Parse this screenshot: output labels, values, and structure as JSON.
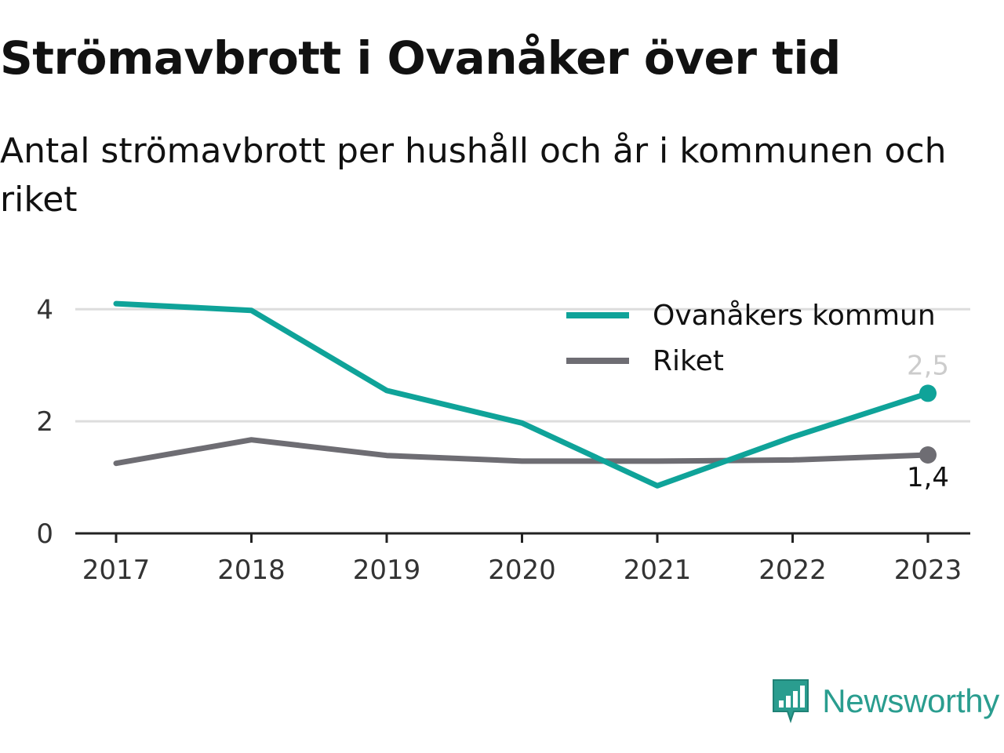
{
  "title": "Strömavbrott i Ovanåker över tid",
  "subtitle": "Antal strömavbrott per hushåll och år i kommunen och riket",
  "brand": {
    "name": "Newsworthy",
    "icon": "newsworthy-logo-icon",
    "color": "#2a9d8f"
  },
  "chart_data": {
    "type": "line",
    "title": "",
    "xlabel": "",
    "ylabel": "",
    "x": [
      "2017",
      "2018",
      "2019",
      "2020",
      "2021",
      "2022",
      "2023"
    ],
    "ylim": [
      0,
      4.2
    ],
    "yticks": [
      0,
      2,
      4
    ],
    "grid": true,
    "legend_position": "top-right",
    "series": [
      {
        "name": "Ovanåkers kommun",
        "color": "#0fa399",
        "values": [
          4.1,
          3.98,
          2.55,
          1.97,
          0.85,
          1.72,
          2.5
        ],
        "end_label": "2,5",
        "end_label_color": "#cccccc"
      },
      {
        "name": "Riket",
        "color": "#6e6d73",
        "values": [
          1.25,
          1.67,
          1.39,
          1.29,
          1.29,
          1.31,
          1.4
        ],
        "end_label": "1,4",
        "end_label_color": "#111111"
      }
    ]
  }
}
